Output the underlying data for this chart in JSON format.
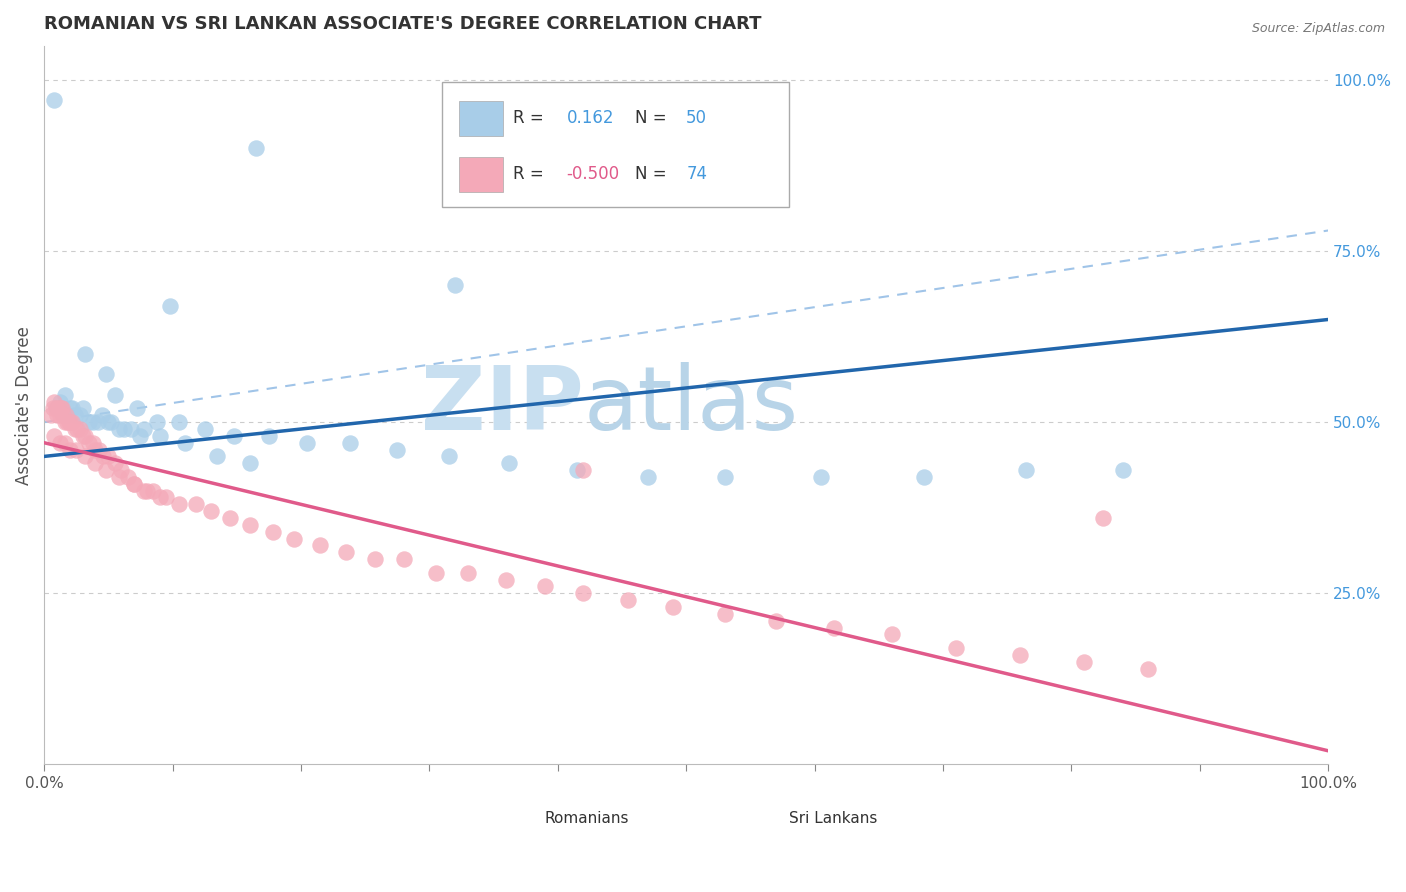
{
  "title": "ROMANIAN VS SRI LANKAN ASSOCIATE'S DEGREE CORRELATION CHART",
  "source": "Source: ZipAtlas.com",
  "ylabel": "Associate's Degree",
  "legend_label1": "Romanians",
  "legend_label2": "Sri Lankans",
  "blue_scatter_color": "#a8cde8",
  "pink_scatter_color": "#f4a9b8",
  "blue_line_color": "#2166ac",
  "pink_line_color": "#e05a8a",
  "dashed_line_color": "#a0c4e8",
  "title_color": "#333333",
  "axis_color": "#555555",
  "tick_color": "#888888",
  "grid_color": "#cccccc",
  "watermark_zip_color": "#c8dff0",
  "watermark_atlas_color": "#b8d4e8",
  "right_tick_color": "#4499dd",
  "r1": 0.162,
  "n1": 50,
  "r2": -0.5,
  "n2": 74,
  "blue_line_x0": 0.0,
  "blue_line_y0": 0.45,
  "blue_line_x1": 1.0,
  "blue_line_y1": 0.65,
  "pink_line_x0": 0.0,
  "pink_line_y0": 0.47,
  "pink_line_x1": 1.0,
  "pink_line_y1": 0.02,
  "dashed_line_x0": 0.0,
  "dashed_line_y0": 0.5,
  "dashed_line_x1": 1.0,
  "dashed_line_y1": 0.78,
  "xlim": [
    0.0,
    1.0
  ],
  "ylim": [
    0.0,
    1.05
  ],
  "yticks": [
    0.25,
    0.5,
    0.75,
    1.0
  ],
  "ytick_labels": [
    "25.0%",
    "50.0%",
    "75.0%",
    "100.0%"
  ],
  "num_xticks": 10
}
